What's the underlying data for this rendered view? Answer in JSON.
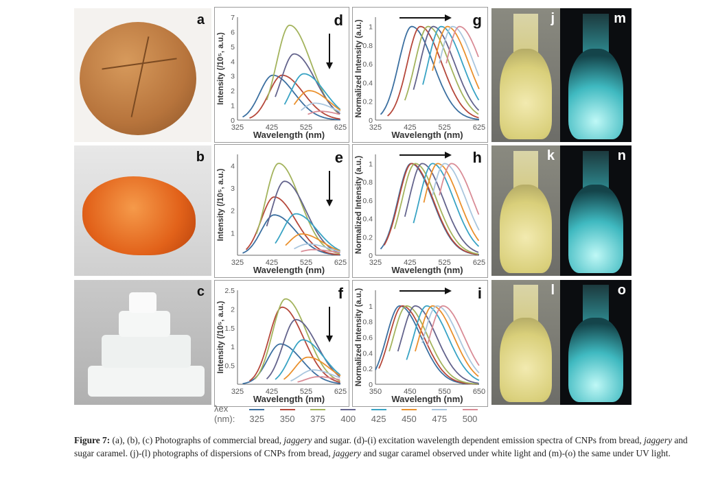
{
  "panels": {
    "a": "a",
    "b": "b",
    "c": "c",
    "j": "j",
    "k": "k",
    "l": "l",
    "m": "m",
    "n": "n",
    "o": "o"
  },
  "legend": {
    "label": "λex (nm):",
    "colors": {
      "325": "#3b6fa0",
      "350": "#b5473a",
      "375": "#a3b35c",
      "400": "#63638c",
      "425": "#38a3c4",
      "450": "#ea902c",
      "475": "#a9c6de",
      "500": "#d98c96"
    },
    "items": [
      "325",
      "350",
      "375",
      "400",
      "425",
      "450",
      "475",
      "500"
    ]
  },
  "chart_data": [
    {
      "id": "d",
      "letter": "d",
      "type": "line",
      "xlabel": "Wavelength (nm)",
      "ylabel": "Intensity (/10⁵, a.u.)",
      "xlim": [
        325,
        625
      ],
      "ylim": [
        0,
        7
      ],
      "xticks": [
        325,
        425,
        525,
        625
      ],
      "yticks": [
        "0",
        "1",
        "2",
        "3",
        "4",
        "5",
        "6",
        "7"
      ],
      "arrow": "down",
      "series": [
        {
          "ex": 325,
          "start": 340,
          "peak": 428,
          "max": 3.05
        },
        {
          "ex": 350,
          "start": 360,
          "peak": 455,
          "max": 3.05
        },
        {
          "ex": 375,
          "start": 410,
          "peak": 477,
          "max": 6.45
        },
        {
          "ex": 400,
          "start": 435,
          "peak": 490,
          "max": 4.5
        },
        {
          "ex": 425,
          "start": 462,
          "peak": 518,
          "max": 3.15
        },
        {
          "ex": 450,
          "start": 490,
          "peak": 533,
          "max": 2.0
        },
        {
          "ex": 475,
          "start": 510,
          "peak": 550,
          "max": 1.15
        },
        {
          "ex": 500,
          "start": 530,
          "peak": 565,
          "max": 0.6
        }
      ]
    },
    {
      "id": "g",
      "letter": "g",
      "type": "line",
      "xlabel": "Wavelength (nm)",
      "ylabel": "Normalized Intensity (a.u.)",
      "xlim": [
        325,
        625
      ],
      "ylim": [
        0,
        1.1
      ],
      "xticks": [
        325,
        425,
        525,
        625
      ],
      "yticks": [
        "0",
        "0.2",
        "0.4",
        "0.6",
        "0.8",
        "1"
      ],
      "arrow": "right",
      "series": [
        {
          "ex": 325,
          "start": 340,
          "peak": 430,
          "max": 1
        },
        {
          "ex": 350,
          "start": 360,
          "peak": 455,
          "max": 1
        },
        {
          "ex": 375,
          "start": 410,
          "peak": 477,
          "max": 1
        },
        {
          "ex": 400,
          "start": 435,
          "peak": 492,
          "max": 1
        },
        {
          "ex": 425,
          "start": 462,
          "peak": 515,
          "max": 1
        },
        {
          "ex": 450,
          "start": 490,
          "peak": 533,
          "max": 1
        },
        {
          "ex": 475,
          "start": 510,
          "peak": 548,
          "max": 1
        },
        {
          "ex": 500,
          "start": 530,
          "peak": 568,
          "max": 1
        }
      ]
    },
    {
      "id": "e",
      "letter": "e",
      "type": "line",
      "xlabel": "Wavelength (nm)",
      "ylabel": "Intensity (/10⁵, a.u.)",
      "xlim": [
        325,
        625
      ],
      "ylim": [
        0,
        4.5
      ],
      "xticks": [
        325,
        425,
        525,
        625
      ],
      "yticks": [
        "",
        "1",
        "2",
        "3",
        "4"
      ],
      "arrow": "down",
      "series": [
        {
          "ex": 325,
          "start": 340,
          "peak": 432,
          "max": 1.8
        },
        {
          "ex": 350,
          "start": 350,
          "peak": 432,
          "max": 2.6
        },
        {
          "ex": 375,
          "start": 380,
          "peak": 445,
          "max": 4.1
        },
        {
          "ex": 400,
          "start": 410,
          "peak": 462,
          "max": 3.3
        },
        {
          "ex": 425,
          "start": 435,
          "peak": 495,
          "max": 1.85
        },
        {
          "ex": 450,
          "start": 465,
          "peak": 512,
          "max": 0.95
        },
        {
          "ex": 475,
          "start": 490,
          "peak": 530,
          "max": 0.5
        },
        {
          "ex": 500,
          "start": 510,
          "peak": 545,
          "max": 0.25
        }
      ]
    },
    {
      "id": "h",
      "letter": "h",
      "type": "line",
      "xlabel": "Wavelength (nm)",
      "ylabel": "Normalized Intensity (a.u.)",
      "xlim": [
        325,
        625
      ],
      "ylim": [
        0,
        1.1
      ],
      "xticks": [
        325,
        425,
        525,
        625
      ],
      "yticks": [
        "0",
        "0.2",
        "0.4",
        "0.6",
        "0.8",
        "1"
      ],
      "arrow": "right",
      "series": [
        {
          "ex": 325,
          "start": 340,
          "peak": 428,
          "max": 1
        },
        {
          "ex": 350,
          "start": 350,
          "peak": 430,
          "max": 1
        },
        {
          "ex": 375,
          "start": 380,
          "peak": 440,
          "max": 1
        },
        {
          "ex": 400,
          "start": 410,
          "peak": 460,
          "max": 1
        },
        {
          "ex": 425,
          "start": 435,
          "peak": 490,
          "max": 1
        },
        {
          "ex": 450,
          "start": 465,
          "peak": 505,
          "max": 1
        },
        {
          "ex": 475,
          "start": 490,
          "peak": 525,
          "max": 1
        },
        {
          "ex": 500,
          "start": 510,
          "peak": 545,
          "max": 1
        }
      ]
    },
    {
      "id": "f",
      "letter": "f",
      "type": "line",
      "xlabel": "Wavelength (nm)",
      "ylabel": "Intensity (/10⁵, a.u.)",
      "xlim": [
        325,
        625
      ],
      "ylim": [
        0,
        2.5
      ],
      "xticks": [
        325,
        425,
        525,
        625
      ],
      "yticks": [
        "",
        "0.5",
        "1",
        "1.5",
        "2",
        "2.5"
      ],
      "arrow": "down",
      "series": [
        {
          "ex": 325,
          "start": 340,
          "peak": 450,
          "max": 1.07
        },
        {
          "ex": 350,
          "start": 360,
          "peak": 455,
          "max": 2.05
        },
        {
          "ex": 375,
          "start": 375,
          "peak": 465,
          "max": 2.27
        },
        {
          "ex": 400,
          "start": 410,
          "peak": 495,
          "max": 1.72
        },
        {
          "ex": 425,
          "start": 435,
          "peak": 515,
          "max": 1.18
        },
        {
          "ex": 450,
          "start": 460,
          "peak": 530,
          "max": 0.72
        },
        {
          "ex": 475,
          "start": 480,
          "peak": 545,
          "max": 0.38
        },
        {
          "ex": 500,
          "start": 500,
          "peak": 560,
          "max": 0.2
        }
      ]
    },
    {
      "id": "i",
      "letter": "i",
      "type": "line",
      "xlabel": "Wavelength (nm)",
      "ylabel": "Normalized Intensity (a.u.)",
      "xlim": [
        350,
        650
      ],
      "ylim": [
        0,
        1.2
      ],
      "xticks": [
        350,
        450,
        550,
        650
      ],
      "yticks": [
        "0",
        "0.2",
        "0.4",
        "0.6",
        "0.8",
        "1"
      ],
      "arrow": "right",
      "series": [
        {
          "ex": 325,
          "start": 350,
          "peak": 420,
          "max": 1
        },
        {
          "ex": 350,
          "start": 360,
          "peak": 428,
          "max": 1
        },
        {
          "ex": 375,
          "start": 390,
          "peak": 440,
          "max": 1
        },
        {
          "ex": 400,
          "start": 415,
          "peak": 465,
          "max": 1
        },
        {
          "ex": 425,
          "start": 440,
          "peak": 498,
          "max": 1
        },
        {
          "ex": 450,
          "start": 465,
          "peak": 515,
          "max": 1
        },
        {
          "ex": 475,
          "start": 485,
          "peak": 528,
          "max": 1
        },
        {
          "ex": 500,
          "start": 500,
          "peak": 545,
          "max": 1
        }
      ]
    }
  ],
  "caption": {
    "label": "Figure 7:",
    "t1": " (a), (b), (c) Photographs of commercial bread, ",
    "i1": "jaggery",
    "t2": " and sugar. (d)-(i) excitation wavelength dependent emission spectra of CNPs from bread, ",
    "i2": "jaggery",
    "t3": " and sugar caramel. (j)-(l) photographs of dispersions of CNPs from bread, ",
    "i3": "jaggery",
    "t4": " and sugar caramel observed under white light and (m)-(o) the same under UV light."
  }
}
